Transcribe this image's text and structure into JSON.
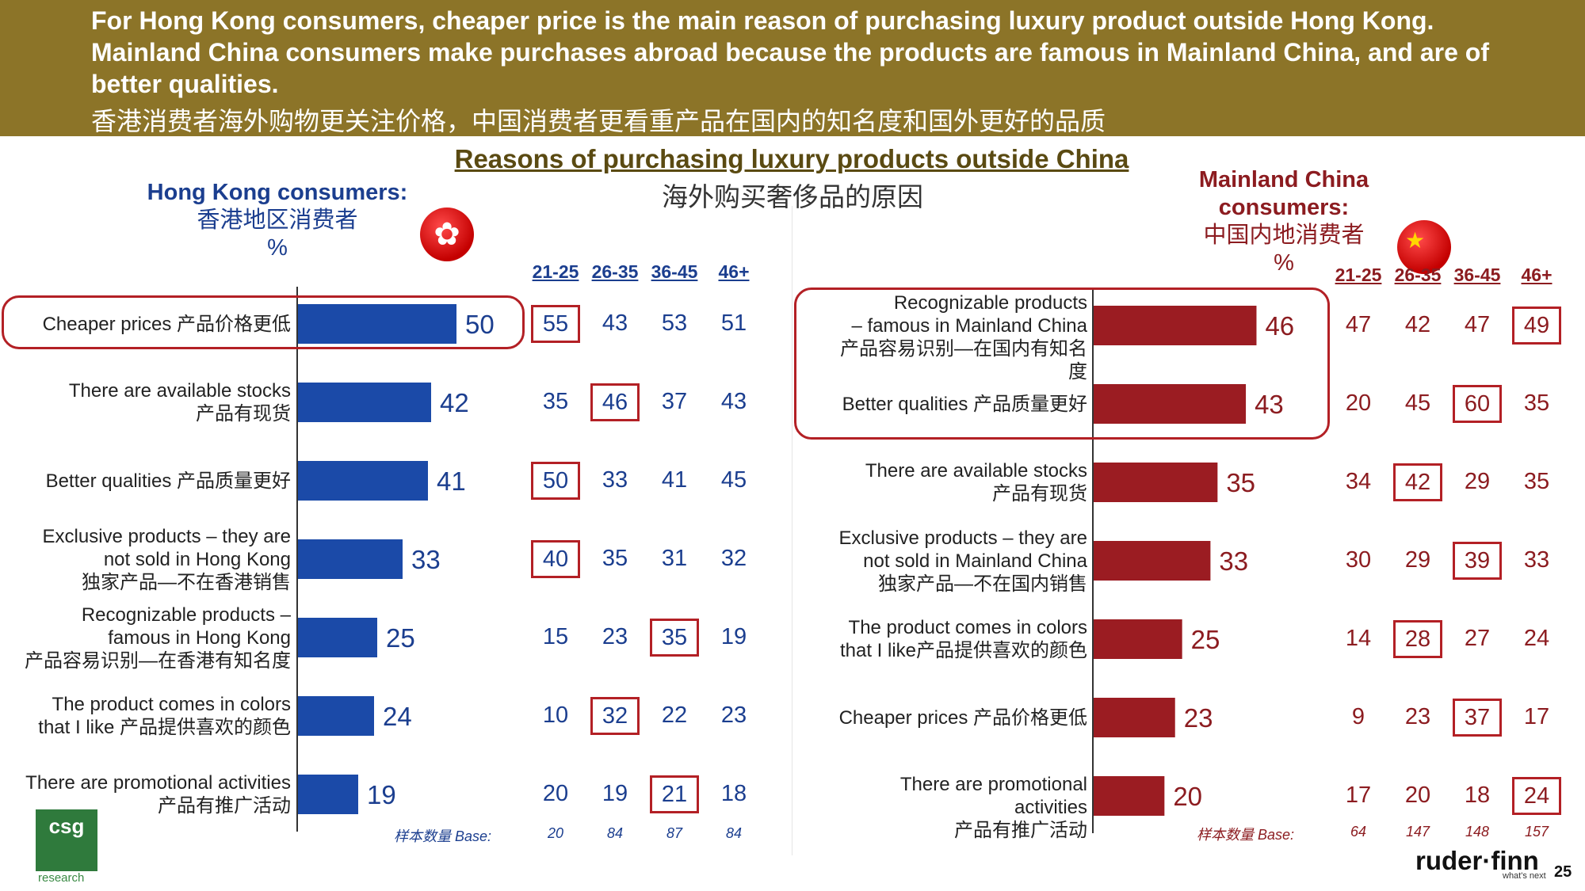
{
  "header": {
    "line1": "For Hong Kong consumers, cheaper price is the main reason of purchasing luxury product outside Hong Kong.",
    "line2": "Mainland China consumers make purchases abroad because the products are famous in Mainland China, and are of",
    "line3": "better qualities.",
    "line_zh": "香港消费者海外购物更关注价格，中国消费者更看重产品在国内的知名度和国外更好的品质"
  },
  "title": {
    "en": "Reasons of purchasing luxury products outside China",
    "zh": "海外购买奢侈品的原因"
  },
  "hk": {
    "title_en": "Hong Kong consumers:",
    "title_zh": "香港地区消费者",
    "title_unit": "%",
    "flag_icon": "✿",
    "bar_color": "#1b4aa8",
    "age_groups": [
      "21-25",
      "26-35",
      "36-45",
      "46+"
    ],
    "base_label": "样本数量 Base:",
    "base_values": [
      "20",
      "84",
      "87",
      "84"
    ],
    "rows": [
      {
        "lines": [
          "Cheaper prices 产品价格更低"
        ],
        "total": 50,
        "ages": [
          "55",
          "43",
          "53",
          "51"
        ]
      },
      {
        "lines": [
          "There are available stocks",
          "产品有现货"
        ],
        "total": 42,
        "ages": [
          "35",
          "46",
          "37",
          "43"
        ]
      },
      {
        "lines": [
          "Better qualities 产品质量更好"
        ],
        "total": 41,
        "ages": [
          "50",
          "33",
          "41",
          "45"
        ]
      },
      {
        "lines": [
          "Exclusive products – they are",
          "not sold in Hong Kong",
          "独家产品—不在香港销售"
        ],
        "total": 33,
        "ages": [
          "40",
          "35",
          "31",
          "32"
        ]
      },
      {
        "lines": [
          "Recognizable products –",
          "famous in Hong Kong",
          "产品容易识别—在香港有知名度"
        ],
        "total": 25,
        "ages": [
          "15",
          "23",
          "35",
          "19"
        ]
      },
      {
        "lines": [
          "The product comes in colors",
          "that I like 产品提供喜欢的颜色"
        ],
        "total": 24,
        "ages": [
          "10",
          "32",
          "22",
          "23"
        ]
      },
      {
        "lines": [
          "There are promotional activities",
          "产品有推广活动"
        ],
        "total": 19,
        "ages": [
          "20",
          "19",
          "21",
          "18"
        ]
      }
    ]
  },
  "cn": {
    "title_en1": "Mainland China",
    "title_en2": "consumers:",
    "title_zh": "中国内地消费者",
    "title_unit": "%",
    "flag_icon": "★",
    "bar_color": "#9b1c22",
    "age_groups": [
      "21-25",
      "26-35",
      "36-45",
      "46+"
    ],
    "base_label": "样本数量 Base:",
    "base_values": [
      "64",
      "147",
      "148",
      "157"
    ],
    "rows": [
      {
        "lines": [
          "Recognizable products",
          "– famous in Mainland China",
          "产品容易识别—在国内有知名度"
        ],
        "total": 46,
        "ages": [
          "47",
          "42",
          "47",
          "49"
        ]
      },
      {
        "lines": [
          "Better qualities 产品质量更好"
        ],
        "total": 43,
        "ages": [
          "20",
          "45",
          "60",
          "35"
        ]
      },
      {
        "lines": [
          "There are available stocks",
          "产品有现货"
        ],
        "total": 35,
        "ages": [
          "34",
          "42",
          "29",
          "35"
        ]
      },
      {
        "lines": [
          "Exclusive products – they are",
          "not sold in Mainland China",
          "独家产品—不在国内销售"
        ],
        "total": 33,
        "ages": [
          "30",
          "29",
          "39",
          "33"
        ]
      },
      {
        "lines": [
          "The product comes in colors",
          "that I like产品提供喜欢的颜色"
        ],
        "total": 25,
        "ages": [
          "14",
          "28",
          "27",
          "24"
        ]
      },
      {
        "lines": [
          "Cheaper prices 产品价格更低"
        ],
        "total": 23,
        "ages": [
          "9",
          "23",
          "37",
          "17"
        ]
      },
      {
        "lines": [
          "There are promotional activities",
          "产品有推广活动"
        ],
        "total": 20,
        "ages": [
          "17",
          "20",
          "18",
          "24"
        ]
      }
    ]
  },
  "chart_data": [
    {
      "type": "bar",
      "orientation": "horizontal",
      "title": "Hong Kong consumers: 香港地区消费者 (%)",
      "categories": [
        "Cheaper prices",
        "There are available stocks",
        "Better qualities",
        "Exclusive products – they are not sold in Hong Kong",
        "Recognizable products – famous in Hong Kong",
        "The product comes in colors that I like",
        "There are promotional activities"
      ],
      "values": [
        50,
        42,
        41,
        33,
        25,
        24,
        19
      ],
      "unit": "%",
      "xlim": [
        0,
        60
      ],
      "age_breakdown": {
        "groups": [
          "21-25",
          "26-35",
          "36-45",
          "46+"
        ],
        "values": [
          [
            55,
            43,
            53,
            51
          ],
          [
            35,
            46,
            37,
            43
          ],
          [
            50,
            33,
            41,
            45
          ],
          [
            40,
            35,
            31,
            32
          ],
          [
            15,
            23,
            35,
            19
          ],
          [
            10,
            32,
            22,
            23
          ],
          [
            20,
            19,
            21,
            18
          ]
        ],
        "boxed": [
          [
            0
          ],
          [
            1
          ],
          [
            0
          ],
          [
            0
          ],
          [
            2
          ],
          [
            1
          ],
          [
            2
          ]
        ],
        "base": [
          20,
          84,
          87,
          84
        ]
      }
    },
    {
      "type": "bar",
      "orientation": "horizontal",
      "title": "Mainland China consumers: 中国内地消费者 (%)",
      "categories": [
        "Recognizable products – famous in Mainland China",
        "Better qualities",
        "There are available stocks",
        "Exclusive products – they are not sold in Mainland China",
        "The product comes in colors that I like",
        "Cheaper prices",
        "There are promotional activities"
      ],
      "values": [
        46,
        43,
        35,
        33,
        25,
        23,
        20
      ],
      "unit": "%",
      "xlim": [
        0,
        60
      ],
      "age_breakdown": {
        "groups": [
          "21-25",
          "26-35",
          "36-45",
          "46+"
        ],
        "values": [
          [
            47,
            42,
            47,
            49
          ],
          [
            20,
            45,
            60,
            35
          ],
          [
            34,
            42,
            29,
            35
          ],
          [
            30,
            29,
            39,
            33
          ],
          [
            14,
            28,
            27,
            24
          ],
          [
            9,
            23,
            37,
            17
          ],
          [
            17,
            20,
            18,
            24
          ]
        ],
        "boxed": [
          [
            3
          ],
          [
            2
          ],
          [
            1
          ],
          [
            2
          ],
          [
            1
          ],
          [
            2
          ],
          [
            3
          ]
        ],
        "base": [
          64,
          147,
          148,
          157
        ]
      }
    }
  ],
  "footer": {
    "csg_logo": "csg",
    "csg_sub": "research",
    "rf_logo": "ruder·finn",
    "rf_tagline": "what's next",
    "page_number": "25"
  }
}
